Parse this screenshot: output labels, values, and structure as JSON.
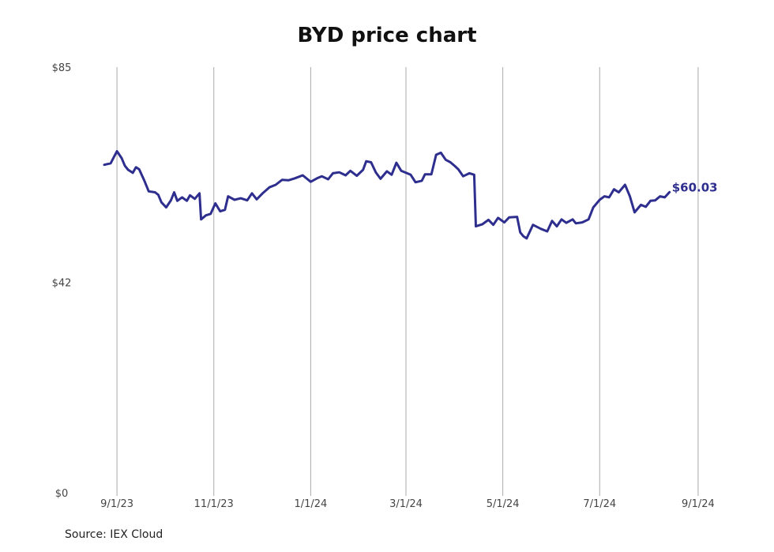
{
  "source_label": "Source: IEX Cloud",
  "colors": {
    "line": "#2e2e8f",
    "grid": "#aaaaaa",
    "text": "#444444"
  },
  "chart_data": {
    "type": "line",
    "title": "BYD price chart",
    "xlabel": "",
    "ylabel": "",
    "grid": "vertical",
    "ylim": [
      0,
      85
    ],
    "yticks": [
      {
        "value": 85,
        "label": "$85"
      },
      {
        "value": 42,
        "label": "$42"
      },
      {
        "value": 0,
        "label": "$0"
      }
    ],
    "xlim": [
      "2023-08-23",
      "2024-09-09"
    ],
    "xticks": [
      {
        "date": "2023-09-01",
        "label": "9/1/23"
      },
      {
        "date": "2023-11-01",
        "label": "11/1/23"
      },
      {
        "date": "2024-01-01",
        "label": "1/1/24"
      },
      {
        "date": "2024-03-01",
        "label": "3/1/24"
      },
      {
        "date": "2024-05-01",
        "label": "5/1/24"
      },
      {
        "date": "2024-07-01",
        "label": "7/1/24"
      },
      {
        "date": "2024-09-01",
        "label": "9/1/24"
      }
    ],
    "last_value_label": "$60.03",
    "series": [
      {
        "points": [
          [
            "2023-08-24",
            65.5
          ],
          [
            "2023-08-28",
            65.8
          ],
          [
            "2023-08-30",
            67.0
          ],
          [
            "2023-09-01",
            68.2
          ],
          [
            "2023-09-04",
            66.8
          ],
          [
            "2023-09-06",
            65.3
          ],
          [
            "2023-09-08",
            64.5
          ],
          [
            "2023-09-11",
            63.9
          ],
          [
            "2023-09-13",
            65.0
          ],
          [
            "2023-09-15",
            64.6
          ],
          [
            "2023-09-18",
            62.5
          ],
          [
            "2023-09-21",
            60.2
          ],
          [
            "2023-09-25",
            60.0
          ],
          [
            "2023-09-27",
            59.5
          ],
          [
            "2023-09-29",
            58.0
          ],
          [
            "2023-10-02",
            57.0
          ],
          [
            "2023-10-05",
            58.4
          ],
          [
            "2023-10-07",
            60.0
          ],
          [
            "2023-10-09",
            58.3
          ],
          [
            "2023-10-12",
            59.0
          ],
          [
            "2023-10-15",
            58.3
          ],
          [
            "2023-10-17",
            59.4
          ],
          [
            "2023-10-20",
            58.7
          ],
          [
            "2023-10-23",
            59.8
          ],
          [
            "2023-10-24",
            54.6
          ],
          [
            "2023-10-27",
            55.4
          ],
          [
            "2023-10-30",
            55.7
          ],
          [
            "2023-11-02",
            57.8
          ],
          [
            "2023-11-05",
            56.2
          ],
          [
            "2023-11-08",
            56.5
          ],
          [
            "2023-11-10",
            59.2
          ],
          [
            "2023-11-14",
            58.5
          ],
          [
            "2023-11-18",
            58.8
          ],
          [
            "2023-11-22",
            58.4
          ],
          [
            "2023-11-25",
            59.8
          ],
          [
            "2023-11-28",
            58.6
          ],
          [
            "2023-12-02",
            59.9
          ],
          [
            "2023-12-06",
            61.0
          ],
          [
            "2023-12-10",
            61.5
          ],
          [
            "2023-12-14",
            62.5
          ],
          [
            "2023-12-18",
            62.4
          ],
          [
            "2023-12-22",
            62.8
          ],
          [
            "2023-12-27",
            63.4
          ],
          [
            "2024-01-01",
            62.1
          ],
          [
            "2024-01-05",
            62.8
          ],
          [
            "2024-01-08",
            63.2
          ],
          [
            "2024-01-12",
            62.6
          ],
          [
            "2024-01-15",
            63.8
          ],
          [
            "2024-01-19",
            64.0
          ],
          [
            "2024-01-23",
            63.4
          ],
          [
            "2024-01-26",
            64.3
          ],
          [
            "2024-01-30",
            63.3
          ],
          [
            "2024-02-03",
            64.5
          ],
          [
            "2024-02-05",
            66.2
          ],
          [
            "2024-02-08",
            66.0
          ],
          [
            "2024-02-11",
            64.0
          ],
          [
            "2024-02-14",
            62.7
          ],
          [
            "2024-02-18",
            64.2
          ],
          [
            "2024-02-21",
            63.5
          ],
          [
            "2024-02-24",
            65.9
          ],
          [
            "2024-02-27",
            64.3
          ],
          [
            "2024-03-01",
            63.9
          ],
          [
            "2024-03-04",
            63.5
          ],
          [
            "2024-03-07",
            62.0
          ],
          [
            "2024-03-11",
            62.3
          ],
          [
            "2024-03-13",
            63.6
          ],
          [
            "2024-03-17",
            63.6
          ],
          [
            "2024-03-20",
            67.5
          ],
          [
            "2024-03-23",
            67.9
          ],
          [
            "2024-03-26",
            66.5
          ],
          [
            "2024-03-29",
            66.0
          ],
          [
            "2024-04-01",
            65.2
          ],
          [
            "2024-04-03",
            64.6
          ],
          [
            "2024-04-06",
            63.2
          ],
          [
            "2024-04-10",
            63.8
          ],
          [
            "2024-04-13",
            63.5
          ],
          [
            "2024-04-14",
            53.2
          ],
          [
            "2024-04-18",
            53.6
          ],
          [
            "2024-04-22",
            54.5
          ],
          [
            "2024-04-25",
            53.5
          ],
          [
            "2024-04-28",
            54.9
          ],
          [
            "2024-05-02",
            54.0
          ],
          [
            "2024-05-05",
            55.0
          ],
          [
            "2024-05-10",
            55.1
          ],
          [
            "2024-05-12",
            52.0
          ],
          [
            "2024-05-14",
            51.2
          ],
          [
            "2024-05-16",
            50.8
          ],
          [
            "2024-05-20",
            53.5
          ],
          [
            "2024-05-25",
            52.7
          ],
          [
            "2024-05-29",
            52.2
          ],
          [
            "2024-06-01",
            54.3
          ],
          [
            "2024-06-04",
            53.2
          ],
          [
            "2024-06-07",
            54.6
          ],
          [
            "2024-06-10",
            53.9
          ],
          [
            "2024-06-14",
            54.6
          ],
          [
            "2024-06-16",
            53.8
          ],
          [
            "2024-06-20",
            54.0
          ],
          [
            "2024-06-24",
            54.6
          ],
          [
            "2024-06-27",
            57.0
          ],
          [
            "2024-07-01",
            58.5
          ],
          [
            "2024-07-04",
            59.2
          ],
          [
            "2024-07-07",
            59.0
          ],
          [
            "2024-07-10",
            60.6
          ],
          [
            "2024-07-13",
            60.0
          ],
          [
            "2024-07-17",
            61.5
          ],
          [
            "2024-07-20",
            59.2
          ],
          [
            "2024-07-23",
            56.0
          ],
          [
            "2024-07-27",
            57.5
          ],
          [
            "2024-07-30",
            57.1
          ],
          [
            "2024-08-02",
            58.3
          ],
          [
            "2024-08-05",
            58.4
          ],
          [
            "2024-08-08",
            59.2
          ],
          [
            "2024-08-11",
            59.0
          ],
          [
            "2024-08-14",
            60.03
          ]
        ]
      }
    ]
  }
}
